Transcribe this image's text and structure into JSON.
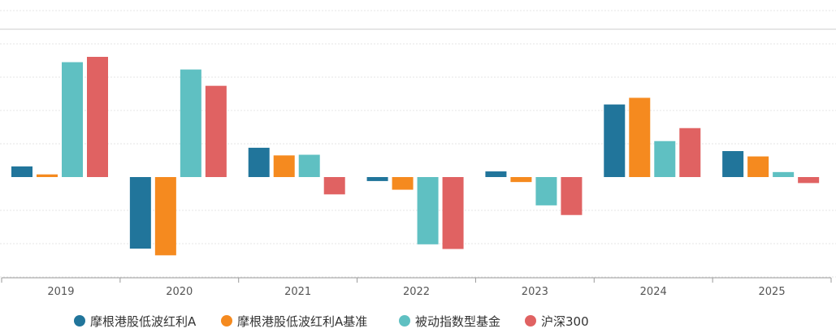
{
  "chart_data": {
    "type": "bar",
    "title": "",
    "xlabel": "",
    "ylabel": "",
    "categories": [
      "2019",
      "2020",
      "2021",
      "2022",
      "2023",
      "2024",
      "2025"
    ],
    "ylim": [
      -30,
      50
    ],
    "grid": true,
    "legend_position": "bottom",
    "series": [
      {
        "name": "摩根港股低波红利A",
        "color": "#21759b",
        "values": [
          3.2,
          -21.5,
          8.8,
          -1.2,
          1.7,
          21.8,
          7.8
        ]
      },
      {
        "name": "摩根港股低波红利A基准",
        "color": "#f58a1f",
        "values": [
          0.8,
          -23.5,
          6.5,
          -3.8,
          -1.5,
          23.8,
          6.2
        ]
      },
      {
        "name": "被动指数型基金",
        "color": "#5fc0c2",
        "values": [
          34.5,
          32.3,
          6.7,
          -20.2,
          -8.5,
          10.8,
          1.5
        ]
      },
      {
        "name": "沪深300",
        "color": "#e06262",
        "values": [
          36.1,
          27.4,
          -5.2,
          -21.6,
          -11.4,
          14.7,
          -1.8
        ]
      }
    ]
  }
}
